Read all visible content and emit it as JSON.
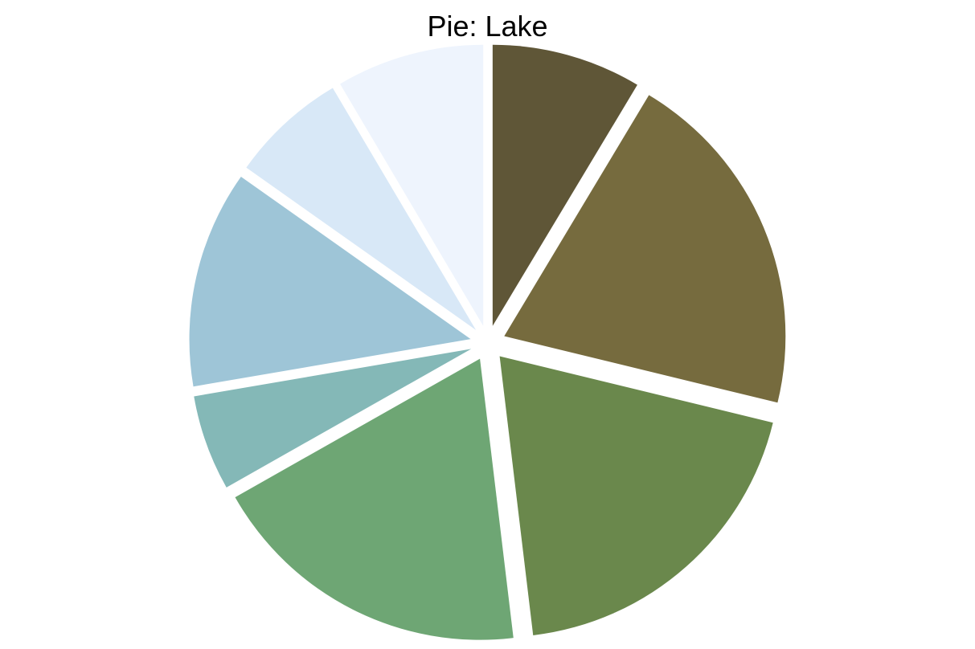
{
  "chart_data": {
    "type": "pie",
    "title": "Pie: Lake",
    "start_angle_deg": 90,
    "direction": "clockwise",
    "exploded": true,
    "slices": [
      {
        "value": 8.6,
        "color": "#5f5637"
      },
      {
        "value": 20.2,
        "color": "#766b3e"
      },
      {
        "value": 19.3,
        "color": "#6a884c"
      },
      {
        "value": 18.7,
        "color": "#6ea674"
      },
      {
        "value": 5.5,
        "color": "#84b8b7"
      },
      {
        "value": 12.5,
        "color": "#9ec5d7"
      },
      {
        "value": 6.7,
        "color": "#d8e8f7"
      },
      {
        "value": 8.5,
        "color": "#eef4fd"
      }
    ]
  }
}
